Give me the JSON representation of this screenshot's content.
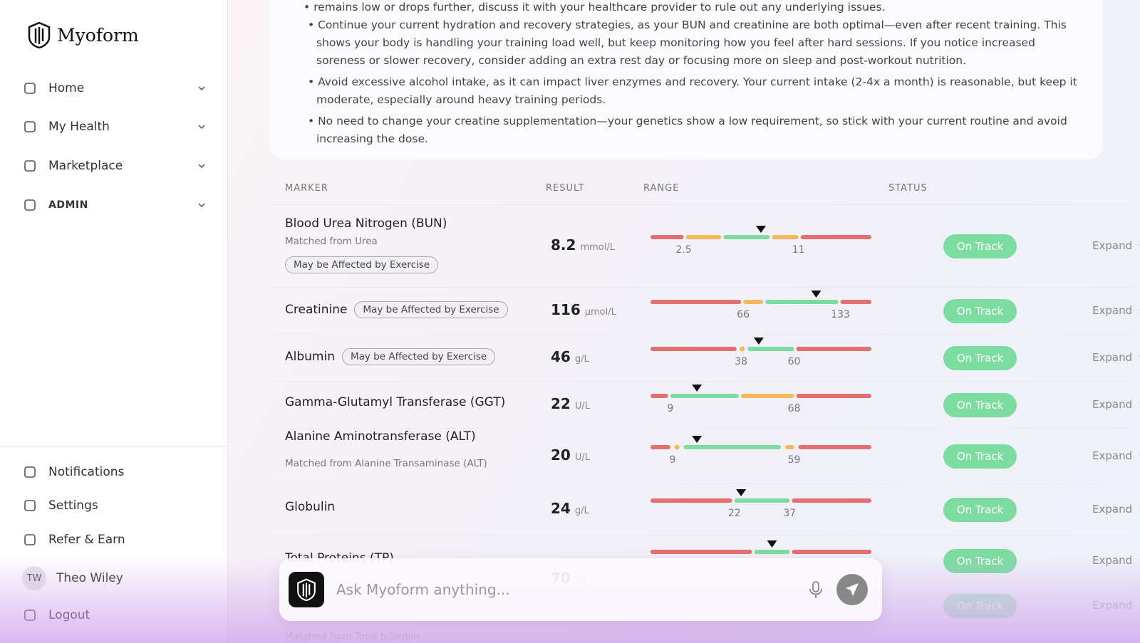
{
  "sidebar": {
    "brand": "Myoform",
    "nav": [
      "Home",
      "My Health",
      "Marketplace",
      "ADMIN"
    ],
    "bottom": [
      "Notifications",
      "Settings",
      "Refer & Earn"
    ],
    "user": {
      "initials": "TW",
      "name": "Theo Wiley"
    },
    "logout": "Logout"
  },
  "recommendations": {
    "cut_off": "remains low or drops further, discuss it with your healthcare provider to rule out any underlying issues.",
    "items": [
      "Continue your current hydration and recovery strategies, as your BUN and creatinine are both optimal—even after recent training. This shows your body is handling your training load well, but keep monitoring how you feel after hard sessions. If you notice increased soreness or slower recovery, consider adding an extra rest day or focusing more on sleep and post-workout nutrition.",
      "Avoid excessive alcohol intake, as it can impact liver enzymes and recovery. Your current intake (2-4x a month) is reasonable, but keep it moderate, especially around heavy training periods.",
      "No need to change your creatine supplementation—your genetics show a low requirement, so stick with your current routine and avoid increasing the dose."
    ]
  },
  "table": {
    "headers": [
      "MARKER",
      "RESULT",
      "RANGE",
      "STATUS"
    ],
    "rows": [
      {
        "name": "Blood Urea Nitrogen (BUN)",
        "sub": "Matched from Urea",
        "tag": "May be Affected by Exercise",
        "value": 8.2,
        "unit": "mmol/L",
        "low": 2.5,
        "high": 11,
        "status": "On Track",
        "action": "Expand"
      },
      {
        "name": "Creatinine",
        "tag": "May be Affected by Exercise",
        "value": 116,
        "unit": "µmol/L",
        "low": 66,
        "high": 133,
        "status": "On Track",
        "action": "Expand"
      },
      {
        "name": "Albumin",
        "tag": "May be Affected by Exercise",
        "value": 46,
        "unit": "g/L",
        "low": 38,
        "high": 60,
        "status": "On Track",
        "action": "Expand"
      },
      {
        "name": "Gamma-Glutamyl Transferase (GGT)",
        "value": 22,
        "unit": "U/L",
        "low": 9,
        "high": 68,
        "status": "On Track",
        "action": "Expand"
      },
      {
        "name": "Alanine Aminotransferase (ALT)",
        "sub": "Matched from Alanine Transaminase (ALT)",
        "value": 20,
        "unit": "U/L",
        "low": 9,
        "high": 59,
        "status": "On Track",
        "action": "Expand"
      },
      {
        "name": "Globulin",
        "value": 24,
        "unit": "g/L",
        "low": 22,
        "high": 37,
        "status": "On Track",
        "action": "Expand"
      },
      {
        "name": "Total Proteins (TP)",
        "value": 70,
        "unit": "g/L",
        "status": "On Track",
        "action": "Expand"
      },
      {
        "sub": "Matched from Total bilirubin",
        "status": "On Track",
        "action": "Expand"
      }
    ]
  },
  "chat": {
    "placeholder": "Ask Myoform anything..."
  }
}
